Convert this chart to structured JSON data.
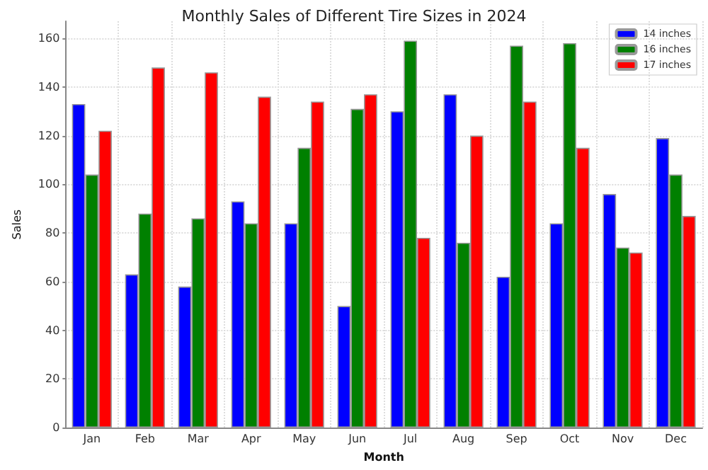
{
  "chart_data": {
    "type": "bar",
    "title": "Monthly Sales of Different Tire Sizes in 2024",
    "xlabel": "Month",
    "ylabel": "Sales",
    "categories": [
      "Jan",
      "Feb",
      "Mar",
      "Apr",
      "May",
      "Jun",
      "Jul",
      "Aug",
      "Sep",
      "Oct",
      "Nov",
      "Dec"
    ],
    "series": [
      {
        "name": "14 inches",
        "color": "#0000ff",
        "values": [
          133,
          63,
          58,
          93,
          84,
          50,
          130,
          137,
          62,
          84,
          96,
          119
        ]
      },
      {
        "name": "16 inches",
        "color": "#008000",
        "values": [
          104,
          88,
          86,
          84,
          115,
          131,
          159,
          76,
          157,
          158,
          74,
          104
        ]
      },
      {
        "name": "17 inches",
        "color": "#ff0000",
        "values": [
          122,
          148,
          146,
          136,
          134,
          137,
          78,
          120,
          134,
          115,
          72,
          87
        ]
      }
    ],
    "ylim": [
      0,
      167
    ],
    "yticks": [
      0,
      20,
      40,
      60,
      80,
      100,
      120,
      140,
      160
    ],
    "grid": true,
    "legend": "top right"
  }
}
